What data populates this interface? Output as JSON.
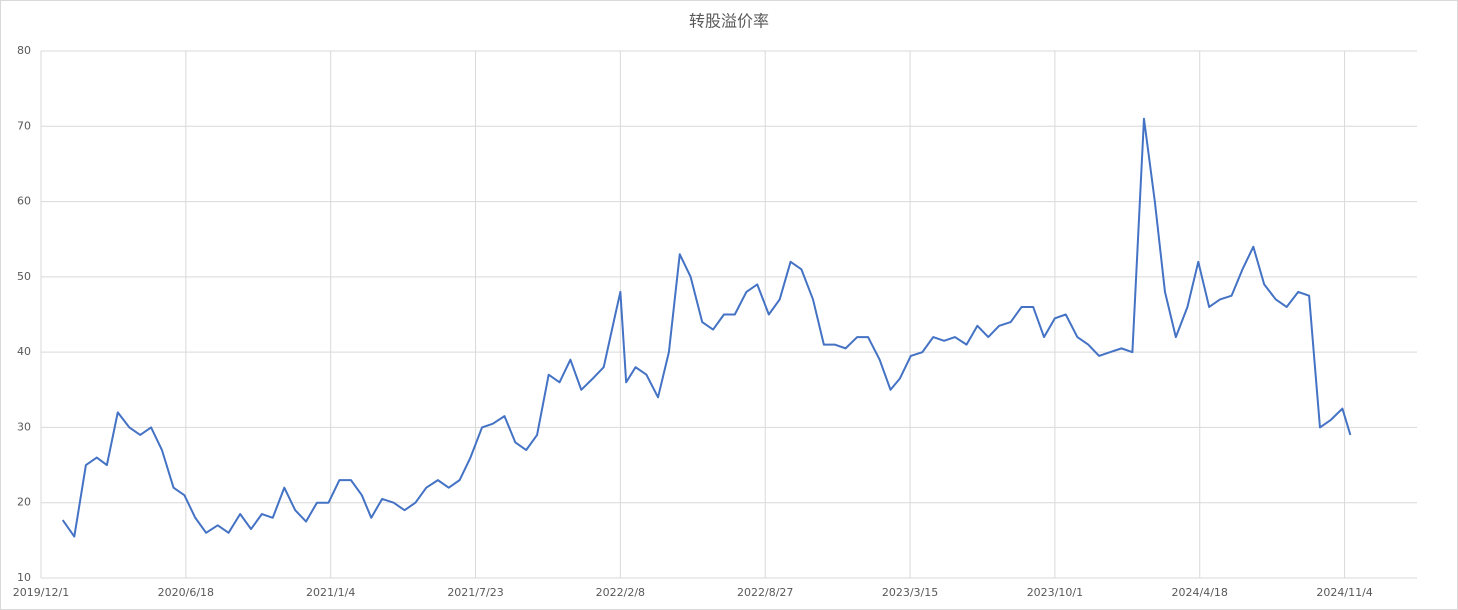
{
  "chart_data": {
    "type": "line",
    "title": "转股溢价率",
    "x": [
      "2019/12/31",
      "2020/1/16",
      "2020/2/1",
      "2020/2/16",
      "2020/3/1",
      "2020/3/16",
      "2020/4/1",
      "2020/4/16",
      "2020/5/1",
      "2020/5/16",
      "2020/6/1",
      "2020/6/16",
      "2020/7/1",
      "2020/7/16",
      "2020/8/1",
      "2020/8/16",
      "2020/9/1",
      "2020/9/16",
      "2020/10/1",
      "2020/10/16",
      "2020/11/1",
      "2020/11/16",
      "2020/12/1",
      "2020/12/16",
      "2021/1/1",
      "2021/1/16",
      "2021/2/1",
      "2021/2/16",
      "2021/3/1",
      "2021/3/16",
      "2021/4/1",
      "2021/4/16",
      "2021/5/1",
      "2021/5/16",
      "2021/6/1",
      "2021/6/16",
      "2021/7/1",
      "2021/7/16",
      "2021/8/1",
      "2021/8/16",
      "2021/9/1",
      "2021/9/16",
      "2021/10/1",
      "2021/10/16",
      "2021/11/1",
      "2021/11/16",
      "2021/12/1",
      "2021/12/16",
      "2022/1/1",
      "2022/1/16",
      "2022/2/1",
      "2022/2/8",
      "2022/2/16",
      "2022/3/1",
      "2022/3/16",
      "2022/4/1",
      "2022/4/16",
      "2022/5/1",
      "2022/5/16",
      "2022/6/1",
      "2022/6/16",
      "2022/7/1",
      "2022/7/16",
      "2022/8/1",
      "2022/8/16",
      "2022/9/1",
      "2022/9/16",
      "2022/10/1",
      "2022/10/16",
      "2022/11/1",
      "2022/11/16",
      "2022/12/1",
      "2022/12/16",
      "2023/1/1",
      "2023/1/16",
      "2023/2/1",
      "2023/2/16",
      "2023/3/1",
      "2023/3/16",
      "2023/4/1",
      "2023/4/16",
      "2023/5/1",
      "2023/5/16",
      "2023/6/1",
      "2023/6/16",
      "2023/7/1",
      "2023/7/16",
      "2023/8/1",
      "2023/8/16",
      "2023/9/1",
      "2023/9/16",
      "2023/10/1",
      "2023/10/16",
      "2023/11/1",
      "2023/11/16",
      "2023/12/1",
      "2023/12/16",
      "2024/1/1",
      "2024/1/16",
      "2024/2/1",
      "2024/2/16",
      "2024/3/1",
      "2024/3/16",
      "2024/4/1",
      "2024/4/16",
      "2024/5/1",
      "2024/5/16",
      "2024/6/1",
      "2024/6/16",
      "2024/7/1",
      "2024/7/16",
      "2024/8/1",
      "2024/8/16",
      "2024/9/1",
      "2024/9/16",
      "2024/10/1",
      "2024/10/16",
      "2024/11/1",
      "2024/11/12"
    ],
    "series": [
      {
        "color": "#4472c4",
        "values": [
          17.7,
          15.5,
          25,
          26,
          25,
          32,
          30,
          29,
          30,
          27,
          22,
          21,
          18,
          16,
          17,
          16,
          18.5,
          16.5,
          18.5,
          18,
          22,
          19,
          17.5,
          20,
          20,
          23,
          23,
          21,
          18,
          20.5,
          20,
          19,
          20,
          22,
          23,
          22,
          23,
          26,
          30,
          30.5,
          31.5,
          28,
          27,
          29,
          37,
          36,
          39,
          35,
          36.5,
          38,
          45,
          48,
          36,
          38,
          37,
          34,
          40,
          53,
          50,
          44,
          43,
          45,
          45,
          48,
          49,
          45,
          47,
          52,
          51,
          47,
          41,
          41,
          40.5,
          42,
          42,
          39,
          35,
          36.5,
          39.5,
          40,
          42,
          41.5,
          42,
          41,
          43.5,
          42,
          43.5,
          44,
          46,
          46,
          42,
          44.5,
          45,
          42,
          41,
          39.5,
          40,
          40.5,
          40,
          71,
          60,
          48,
          42,
          46,
          52,
          46,
          47,
          47.5,
          51,
          54,
          49,
          47,
          46,
          48,
          47.5,
          30,
          31,
          32.5,
          29
        ]
      }
    ],
    "xlim": [
      "2019/12/1",
      "2025/2/12"
    ],
    "xticks": [
      "2019/12/1",
      "2020/6/18",
      "2021/1/4",
      "2021/7/23",
      "2022/2/8",
      "2022/8/27",
      "2023/3/15",
      "2023/10/1",
      "2024/4/18",
      "2024/11/4"
    ],
    "ylim": [
      10,
      80
    ],
    "yticks": [
      10,
      20,
      30,
      40,
      50,
      60,
      70,
      80
    ],
    "grid": true
  }
}
